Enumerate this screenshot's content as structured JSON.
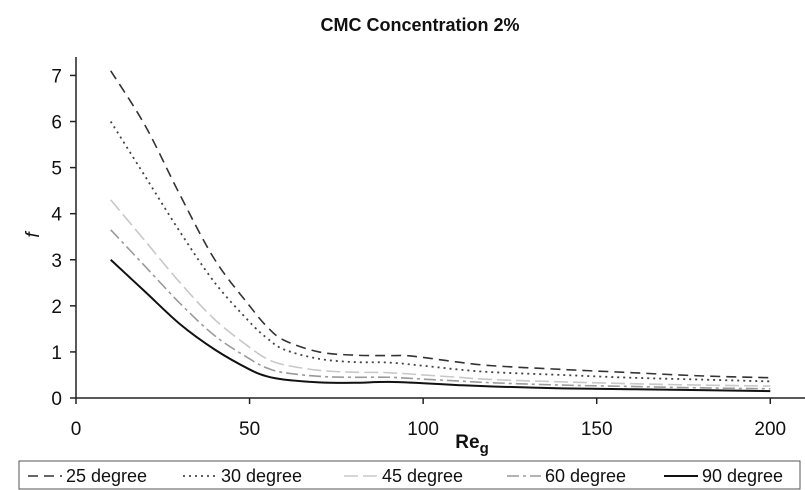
{
  "chart_data": {
    "type": "line",
    "title": "CMC Concentration 2%",
    "xlabel": "Reg",
    "xlabel_main": "Re",
    "xlabel_sub": "g",
    "ylabel": "f",
    "xlim": [
      0,
      210
    ],
    "ylim": [
      0,
      7.4
    ],
    "xticks": [
      0,
      50,
      100,
      150,
      200
    ],
    "yticks": [
      0,
      1,
      2,
      3,
      4,
      5,
      6,
      7
    ],
    "grid": false,
    "legend_position": "bottom",
    "series": [
      {
        "name": "25 degree",
        "dash": "dashed",
        "color": "#333333",
        "x": [
          10,
          20,
          30,
          40,
          50,
          55,
          60,
          70,
          80,
          90,
          95,
          100,
          110,
          120,
          140,
          160,
          180,
          200
        ],
        "y": [
          7.1,
          5.9,
          4.4,
          3.0,
          2.0,
          1.55,
          1.25,
          1.0,
          0.93,
          0.92,
          0.92,
          0.88,
          0.78,
          0.7,
          0.62,
          0.55,
          0.48,
          0.44
        ]
      },
      {
        "name": "30 degree",
        "dash": "dotted",
        "color": "#444444",
        "x": [
          10,
          20,
          30,
          40,
          50,
          55,
          60,
          70,
          80,
          90,
          100,
          110,
          120,
          140,
          160,
          180,
          200
        ],
        "y": [
          6.0,
          4.8,
          3.6,
          2.5,
          1.65,
          1.3,
          1.05,
          0.85,
          0.78,
          0.77,
          0.7,
          0.62,
          0.56,
          0.5,
          0.44,
          0.4,
          0.36
        ]
      },
      {
        "name": "45 degree",
        "dash": "long-dash",
        "color": "#c8c8c8",
        "x": [
          10,
          20,
          30,
          40,
          50,
          55,
          60,
          70,
          80,
          90,
          100,
          110,
          120,
          140,
          160,
          180,
          200
        ],
        "y": [
          4.3,
          3.4,
          2.5,
          1.7,
          1.1,
          0.85,
          0.72,
          0.6,
          0.56,
          0.55,
          0.5,
          0.45,
          0.4,
          0.35,
          0.31,
          0.28,
          0.26
        ]
      },
      {
        "name": "60 degree",
        "dash": "dash-dot",
        "color": "#9a9a9a",
        "x": [
          10,
          20,
          30,
          40,
          50,
          55,
          60,
          70,
          80,
          90,
          100,
          110,
          120,
          140,
          160,
          180,
          200
        ],
        "y": [
          3.65,
          2.85,
          2.05,
          1.35,
          0.85,
          0.65,
          0.55,
          0.47,
          0.45,
          0.45,
          0.41,
          0.37,
          0.33,
          0.28,
          0.25,
          0.22,
          0.2
        ]
      },
      {
        "name": "90 degree",
        "dash": "solid",
        "color": "#111111",
        "x": [
          10,
          20,
          30,
          40,
          50,
          55,
          60,
          70,
          80,
          90,
          100,
          110,
          120,
          140,
          160,
          180,
          200
        ],
        "y": [
          3.0,
          2.3,
          1.6,
          1.05,
          0.62,
          0.47,
          0.4,
          0.34,
          0.33,
          0.35,
          0.32,
          0.28,
          0.25,
          0.21,
          0.19,
          0.17,
          0.15
        ]
      }
    ]
  }
}
